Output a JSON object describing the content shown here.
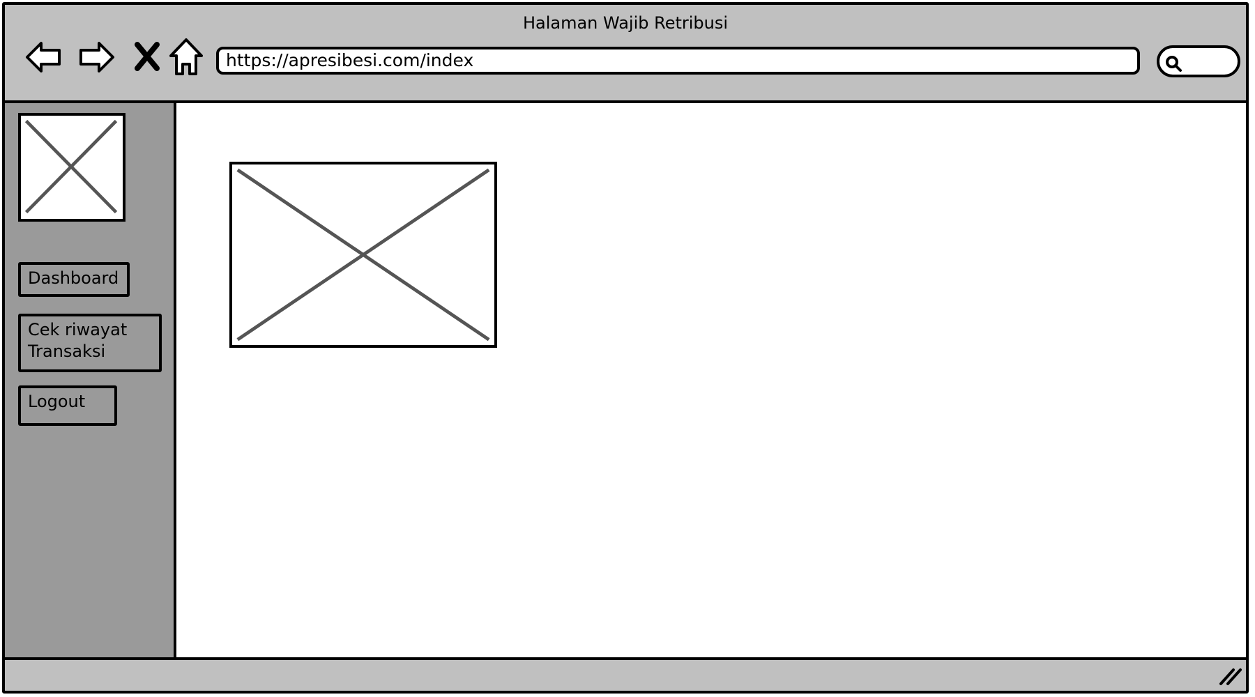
{
  "window": {
    "title": "Halaman Wajib Retribusi"
  },
  "toolbar": {
    "back_icon": "back-arrow-icon",
    "forward_icon": "forward-arrow-icon",
    "stop_icon": "close-icon",
    "home_icon": "home-icon",
    "url": "https://apresibesi.com/index",
    "search_icon": "search-icon"
  },
  "sidebar": {
    "logo_icon": "image-placeholder-icon",
    "items": [
      {
        "label": "Dashboard"
      },
      {
        "label": "Cek riwayat Transaksi"
      },
      {
        "label": "Logout"
      }
    ]
  },
  "main": {
    "image_icon": "image-placeholder-icon"
  },
  "statusbar": {
    "resize_icon": "resize-grip-icon"
  },
  "colors": {
    "chrome": "#c0c0c0",
    "sidebar": "#9a9a9a",
    "border": "#000000",
    "placeholder_cross": "#555555"
  }
}
